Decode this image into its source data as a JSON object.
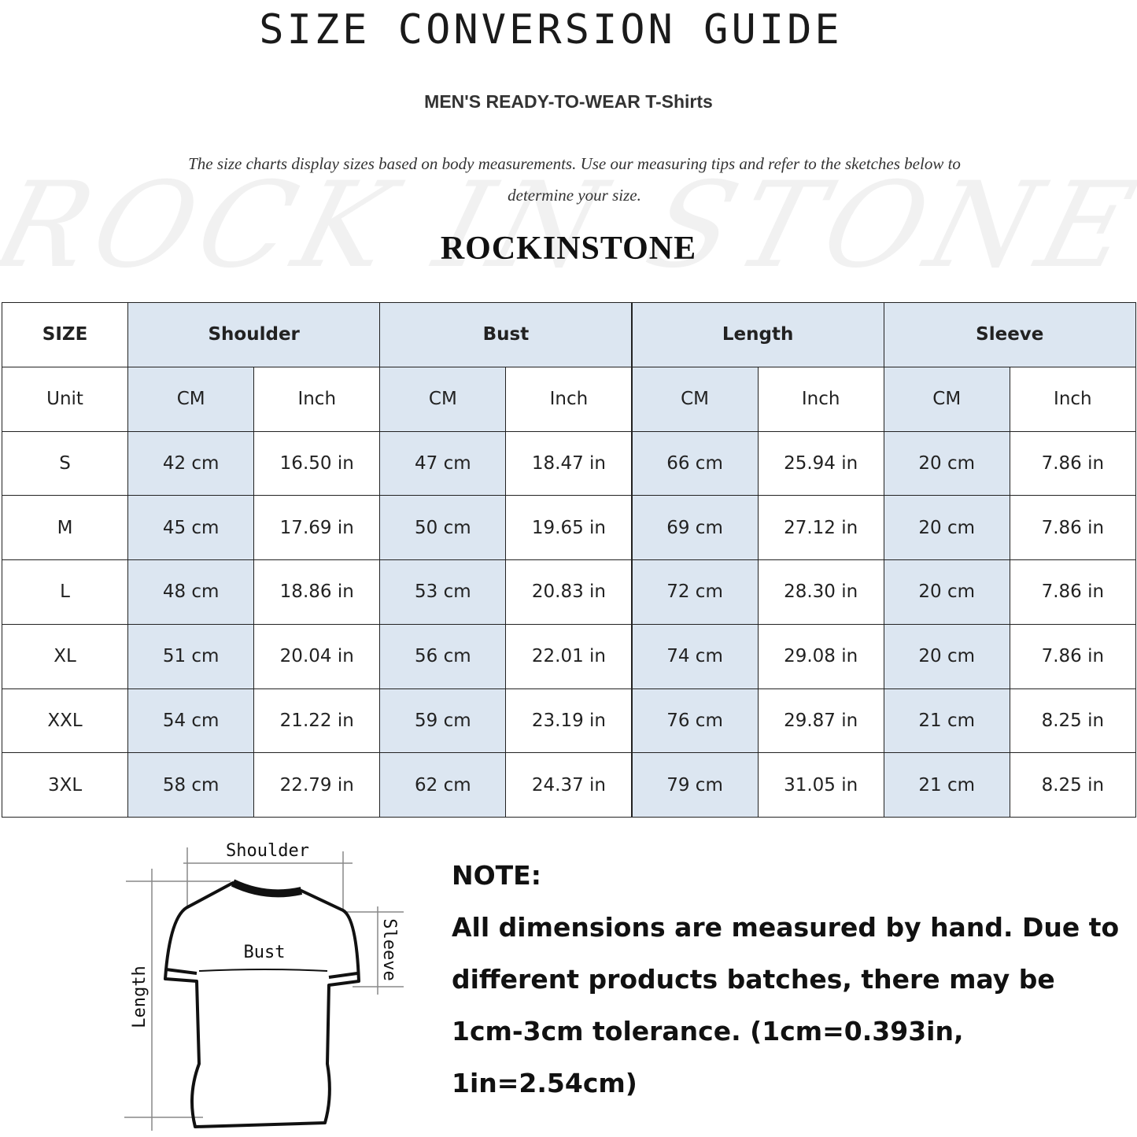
{
  "header": {
    "title": "SIZE CONVERSION GUIDE",
    "subtitle": "MEN'S READY-TO-WEAR T-Shirts",
    "description": "The size charts display sizes based on body measurements. Use our measuring tips and refer to the sketches below to determine your size.",
    "watermark": "ROCK IN STONE",
    "brand": "ROCKINSTONE"
  },
  "colors": {
    "header_fill": "#dce6f1",
    "border": "#222222"
  },
  "table": {
    "size_header": "SIZE",
    "groups": [
      "Shoulder",
      "Bust",
      "Length",
      "Sleeve"
    ],
    "unit_label": "Unit",
    "units": [
      "CM",
      "Inch",
      "CM",
      "Inch",
      "CM",
      "Inch",
      "CM",
      "Inch"
    ],
    "rows": [
      {
        "size": "S",
        "values": [
          "42 cm",
          "16.50 in",
          "47 cm",
          "18.47  in",
          "66 cm",
          "25.94  in",
          "20 cm",
          "7.86  in"
        ]
      },
      {
        "size": "M",
        "values": [
          "45 cm",
          "17.69  in",
          "50 cm",
          "19.65  in",
          "69 cm",
          "27.12  in",
          "20 cm",
          "7.86  in"
        ]
      },
      {
        "size": "L",
        "values": [
          "48 cm",
          "18.86  in",
          "53 cm",
          "20.83  in",
          "72 cm",
          "28.30  in",
          "20 cm",
          "7.86  in"
        ]
      },
      {
        "size": "XL",
        "values": [
          "51 cm",
          "20.04  in",
          "56 cm",
          "22.01  in",
          "74 cm",
          "29.08  in",
          "20 cm",
          "7.86  in"
        ]
      },
      {
        "size": "XXL",
        "values": [
          "54 cm",
          "21.22  in",
          "59 cm",
          "23.19  in",
          "76 cm",
          "29.87  in",
          "21 cm",
          "8.25  in"
        ]
      },
      {
        "size": "3XL",
        "values": [
          "58 cm",
          "22.79  in",
          "62 cm",
          "24.37  in",
          "79 cm",
          "31.05  in",
          "21 cm",
          "8.25  in"
        ]
      }
    ]
  },
  "diagram": {
    "shoulder": "Shoulder",
    "bust": "Bust",
    "sleeve": "Sleeve",
    "length": "Length"
  },
  "note": {
    "heading": "NOTE:",
    "text": "All dimensions are measured by hand. Due to different products batches, there may be 1cm-3cm tolerance. (1cm=0.393in, 1in=2.54cm)"
  }
}
